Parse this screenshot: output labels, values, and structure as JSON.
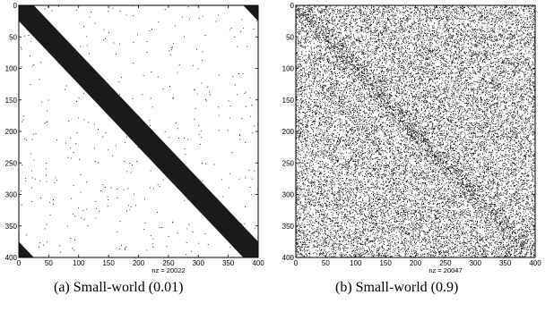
{
  "chart_data": [
    {
      "type": "scatter",
      "variant": "sparsity-pattern",
      "caption": "(a) Small-world (0.01)",
      "nz_label": "nz = 20022",
      "matrix_size": 400,
      "xlim": [
        0,
        400
      ],
      "ylim": [
        0,
        400
      ],
      "y_reversed": true,
      "x_ticks": [
        0,
        50,
        100,
        150,
        200,
        250,
        300,
        350,
        400
      ],
      "y_ticks": [
        0,
        50,
        100,
        150,
        200,
        250,
        300,
        350,
        400
      ],
      "band_half_width": 25,
      "band_wraps_corners": true,
      "random_fill_fraction": 0.0025
    },
    {
      "type": "scatter",
      "variant": "sparsity-pattern",
      "caption": "(b) Small-world (0.9)",
      "nz_label": "nz = 20047",
      "matrix_size": 400,
      "xlim": [
        0,
        400
      ],
      "ylim": [
        0,
        400
      ],
      "y_reversed": true,
      "x_ticks": [
        0,
        50,
        100,
        150,
        200,
        250,
        300,
        350,
        400
      ],
      "y_ticks": [
        0,
        50,
        100,
        150,
        200,
        250,
        300,
        350,
        400
      ],
      "band_half_width": 25,
      "band_wraps_corners": true,
      "band_fill_fraction": 0.1,
      "random_fill_fraction": 0.115
    }
  ]
}
